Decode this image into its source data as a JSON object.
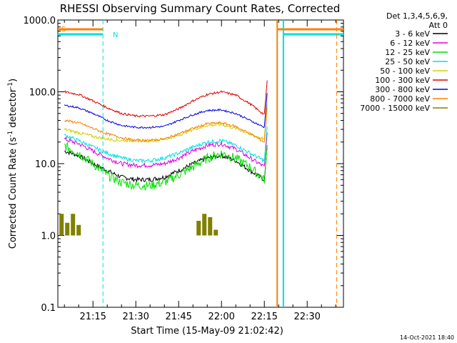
{
  "chart_data": {
    "type": "line",
    "title": "RHESSI Observing Summary Count Rates, Corrected",
    "xlabel": "Start Time (15-May-09 21:02:42)",
    "ylabel": "Corrected Count Rate (s⁻¹ detector⁻¹)",
    "ylabel_main": "Corrected Count Rate (s",
    "ylabel_sup1": "-1",
    "ylabel_mid": " detector",
    "ylabel_sup2": "-1",
    "ylabel_end": ")",
    "yscale": "log",
    "ylim": [
      0.1,
      1000
    ],
    "xlim": [
      "21:02:42",
      "22:42:42"
    ],
    "x_ticks": [
      "21:15",
      "21:30",
      "21:45",
      "22:00",
      "22:15",
      "22:30"
    ],
    "y_ticks": [
      "0.1",
      "1.0",
      "10.0",
      "100.0",
      "1000.0"
    ],
    "legend_header": [
      "Det 1,3,4,5,6,9,",
      "Att 0"
    ],
    "legend_position": "outside-right",
    "footer": "14-Oct-2021 18:40",
    "series": [
      {
        "name": "3 - 6 keV",
        "color": "#000000",
        "x": [
          "21:05",
          "21:10",
          "21:15",
          "21:20",
          "21:25",
          "21:30",
          "21:35",
          "21:40",
          "21:45",
          "21:50",
          "21:55",
          "22:00",
          "22:05",
          "22:10",
          "22:15"
        ],
        "values": [
          15,
          13,
          10,
          8,
          6.5,
          6,
          6,
          6.5,
          8,
          10,
          12,
          13,
          11,
          8,
          6
        ]
      },
      {
        "name": "6 - 12 keV",
        "color": "#e000e0",
        "x": [
          "21:05",
          "21:10",
          "21:15",
          "21:20",
          "21:25",
          "21:30",
          "21:35",
          "21:40",
          "21:45",
          "21:50",
          "21:55",
          "22:00",
          "22:05",
          "22:10",
          "22:15"
        ],
        "values": [
          22,
          19,
          15,
          12,
          10,
          9.5,
          9.5,
          10,
          12,
          15,
          18,
          19,
          16,
          12,
          9
        ]
      },
      {
        "name": "12 - 25 keV",
        "color": "#00e000",
        "x": [
          "21:05",
          "21:10",
          "21:15",
          "21:20",
          "21:25",
          "21:30",
          "21:35",
          "21:40",
          "21:45",
          "21:50",
          "21:55",
          "22:00",
          "22:05",
          "22:10",
          "22:15"
        ],
        "values": [
          18,
          14,
          10,
          7,
          5.5,
          5,
          5,
          5.5,
          7,
          9,
          12,
          14,
          12,
          9,
          6
        ]
      },
      {
        "name": "25 - 50 keV",
        "color": "#00e0e0",
        "x": [
          "21:05",
          "21:10",
          "21:15",
          "21:20",
          "21:25",
          "21:30",
          "21:35",
          "21:40",
          "21:45",
          "21:50",
          "21:55",
          "22:00",
          "22:05",
          "22:10",
          "22:15"
        ],
        "values": [
          25,
          21,
          17,
          14,
          12,
          11,
          11,
          12,
          14,
          17,
          20,
          21,
          18,
          14,
          11
        ]
      },
      {
        "name": "50 - 100 keV",
        "color": "#d0d000",
        "x": [
          "21:05",
          "21:10",
          "21:15",
          "21:20",
          "21:25",
          "21:30",
          "21:35",
          "21:40",
          "21:45",
          "21:50",
          "21:55",
          "22:00",
          "22:05",
          "22:10",
          "22:15"
        ],
        "values": [
          30,
          27,
          24,
          22,
          21,
          21,
          21,
          22,
          25,
          30,
          34,
          35,
          31,
          26,
          22
        ]
      },
      {
        "name": "100 - 300 keV",
        "color": "#e00000",
        "x": [
          "21:05",
          "21:10",
          "21:15",
          "21:20",
          "21:25",
          "21:30",
          "21:35",
          "21:40",
          "21:45",
          "21:50",
          "21:55",
          "22:00",
          "22:05",
          "22:10",
          "22:15"
        ],
        "values": [
          100,
          92,
          75,
          60,
          50,
          46,
          46,
          48,
          58,
          75,
          92,
          100,
          90,
          68,
          48
        ]
      },
      {
        "name": "300 - 800 keV",
        "color": "#0000e0",
        "x": [
          "21:05",
          "21:10",
          "21:15",
          "21:20",
          "21:25",
          "21:30",
          "21:35",
          "21:40",
          "21:45",
          "21:50",
          "21:55",
          "22:00",
          "22:05",
          "22:10",
          "22:15"
        ],
        "values": [
          65,
          60,
          50,
          40,
          34,
          32,
          32,
          33,
          40,
          48,
          55,
          56,
          50,
          40,
          32
        ]
      },
      {
        "name": "800 - 7000 keV",
        "color": "#ff8000",
        "x": [
          "21:05",
          "21:10",
          "21:15",
          "21:20",
          "21:25",
          "21:30",
          "21:35",
          "21:40",
          "21:45",
          "21:50",
          "21:55",
          "22:00",
          "22:05",
          "22:10",
          "22:15"
        ],
        "values": [
          40,
          37,
          31,
          26,
          23,
          21,
          21,
          22,
          26,
          31,
          36,
          37,
          33,
          26,
          20
        ]
      },
      {
        "name": "7000 - 15000 keV",
        "color": "#808000",
        "x": [
          "21:04",
          "21:06",
          "21:08",
          "21:10",
          "21:12",
          "21:50",
          "21:52",
          "21:54",
          "21:56",
          "21:58",
          "22:00"
        ],
        "values": [
          2,
          1.5,
          2,
          1.4,
          1,
          1,
          1.6,
          2,
          1.8,
          1.2,
          1
        ]
      }
    ],
    "annotations": [
      {
        "label": "S",
        "color": "#ff8000",
        "segments": [
          [
            "21:02:42",
            "21:18:30"
          ],
          [
            "22:19:30",
            "22:42:42"
          ]
        ]
      },
      {
        "label": "N",
        "color": "#00e0e0",
        "segments": [
          [
            "21:02:42",
            "21:18:30"
          ],
          [
            "22:21:40",
            "22:42:42"
          ]
        ]
      }
    ],
    "vertical_lines": [
      {
        "x": "21:18:30",
        "color": "#00e0e0",
        "style": "dashed"
      },
      {
        "x": "22:19:30",
        "color": "#ff8000",
        "style": "solid"
      },
      {
        "x": "22:21:40",
        "color": "#00e0e0",
        "style": "solid"
      },
      {
        "x": "22:40:20",
        "color": "#ff8000",
        "style": "dashed"
      }
    ]
  }
}
